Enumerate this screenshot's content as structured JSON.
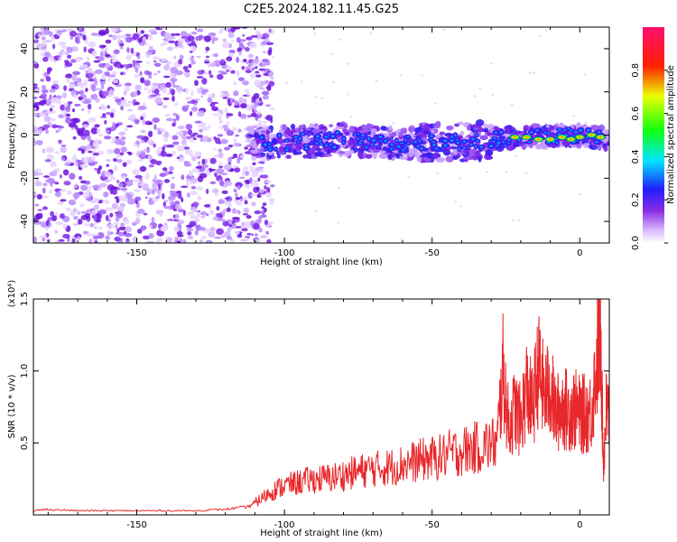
{
  "title": "C2E5.2024.182.11.45.G25",
  "colors": {
    "line": "#e8272a",
    "axis": "#000000"
  },
  "chart_data": [
    {
      "type": "heatmap",
      "xlabel": "Height of straight line (km)",
      "ylabel": "Frequency (Hz)",
      "xlim": [
        -185,
        10
      ],
      "ylim": [
        -50,
        50
      ],
      "xticks": [
        -150,
        -100,
        -50,
        0
      ],
      "yticks": [
        -40,
        -20,
        0,
        20,
        40
      ],
      "colorbar": {
        "label": "Normalized spectral amplitude",
        "range": [
          0,
          1
        ],
        "ticks": [
          "0.0",
          "0.2",
          "0.4",
          "0.6",
          "0.8"
        ],
        "colormap": "rainbow (white-violet-blue-cyan-green-yellow-red-magenta)"
      },
      "features": {
        "noise_region_x": [
          -185,
          -110
        ],
        "signal_band": [
          {
            "x": -110,
            "y": -4
          },
          {
            "x": -80,
            "y": -2
          },
          {
            "x": -60,
            "y": -4
          },
          {
            "x": -40,
            "y": -3
          },
          {
            "x": -20,
            "y": -1
          },
          {
            "x": 0,
            "y": 0
          },
          {
            "x": 10,
            "y": -2
          }
        ]
      }
    },
    {
      "type": "line",
      "xlabel": "Height of straight line (km)",
      "ylabel": "SNR (10 * v/v)",
      "yscale_label": "(x10⁴)",
      "xlim": [
        -185,
        10
      ],
      "ylim": [
        0,
        15000
      ],
      "xticks": [
        -150,
        -100,
        -50,
        0
      ],
      "yticks": [
        "0.5",
        "1.0",
        "1.5"
      ],
      "ytick_values": [
        5000,
        10000,
        15000
      ],
      "series": [
        {
          "x": [
            -185,
            -180,
            -170,
            -160,
            -150,
            -140,
            -130,
            -120,
            -112,
            -108,
            -104,
            -100,
            -96,
            -92,
            -88,
            -84,
            -80,
            -76,
            -72,
            -68,
            -64,
            -60,
            -56,
            -52,
            -48,
            -44,
            -40,
            -36,
            -32,
            -28,
            -26,
            -24,
            -22,
            -20,
            -18,
            -16,
            -14,
            -12,
            -10,
            -8,
            -6,
            -4,
            -2,
            0,
            2,
            4,
            6,
            7,
            8,
            9,
            10
          ],
          "y": [
            300,
            400,
            300,
            300,
            300,
            300,
            300,
            400,
            600,
            1200,
            1800,
            2200,
            2400,
            2600,
            2700,
            2800,
            3000,
            3200,
            3400,
            3500,
            3600,
            3800,
            4000,
            4200,
            4300,
            4600,
            4800,
            5000,
            5200,
            5400,
            10800,
            6500,
            8000,
            7000,
            9500,
            8000,
            11000,
            9000,
            9500,
            7500,
            8200,
            7800,
            8000,
            7500,
            7600,
            7800,
            12000,
            15000,
            3500,
            8000,
            7200
          ]
        }
      ]
    }
  ]
}
